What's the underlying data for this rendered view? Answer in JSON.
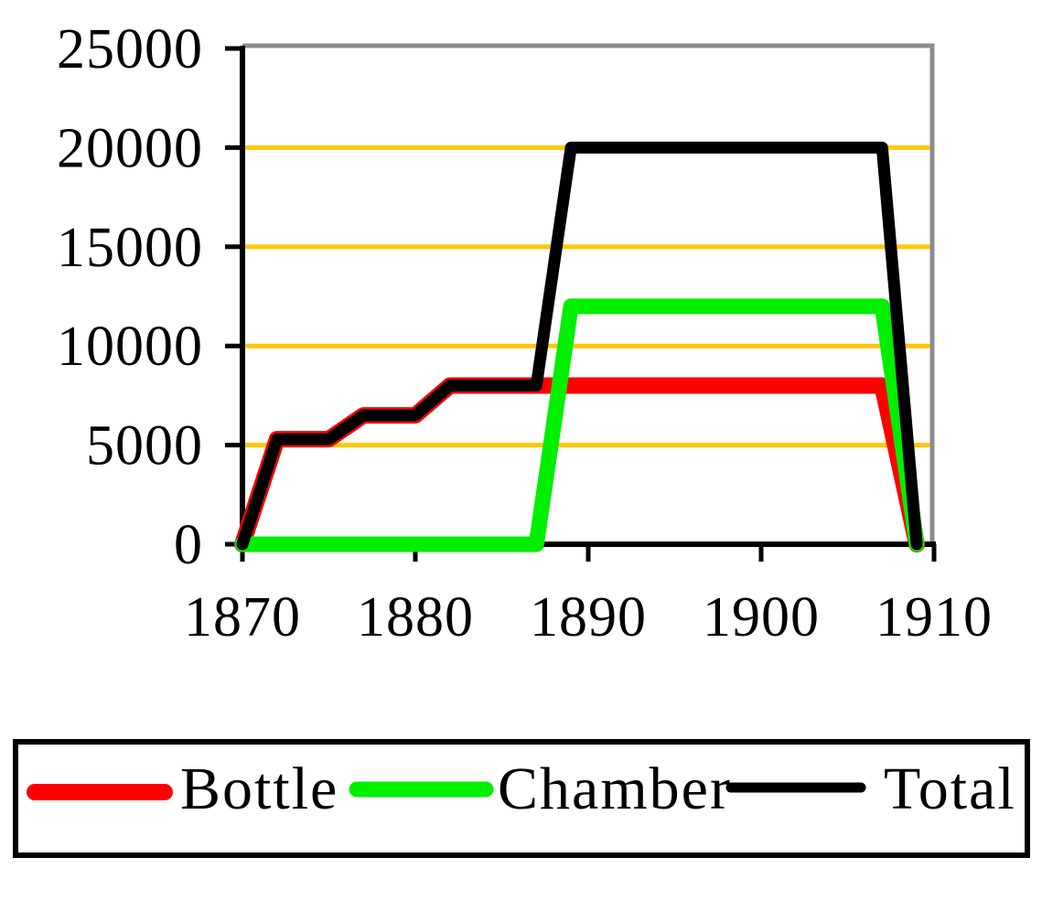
{
  "chart_data": {
    "type": "line",
    "x_axis": {
      "min": 1870,
      "max": 1910,
      "ticks": [
        1870,
        1880,
        1890,
        1900,
        1910
      ],
      "tick_labels": [
        "1870",
        "1880",
        "1890",
        "1900",
        "1910"
      ]
    },
    "y_axis": {
      "min": 0,
      "max": 25000,
      "ticks": [
        0,
        5000,
        10000,
        15000,
        20000,
        25000
      ],
      "tick_labels": [
        "0",
        "5000",
        "10000",
        "15000",
        "20000",
        "25000"
      ]
    },
    "gridlines": {
      "y_values": [
        5000,
        10000,
        15000,
        20000
      ],
      "color": "#FFC808"
    },
    "plot_border_color": "#8C8C8C",
    "axis_color": "#000000",
    "series": [
      {
        "name": "Bottle",
        "color": "#FF0000",
        "points": [
          [
            1870,
            0
          ],
          [
            1872,
            5300
          ],
          [
            1875,
            5300
          ],
          [
            1877,
            6500
          ],
          [
            1880,
            6500
          ],
          [
            1882,
            8000
          ],
          [
            1907,
            8000
          ],
          [
            1909,
            0
          ]
        ]
      },
      {
        "name": "Chamber",
        "color": "#00EE00",
        "points": [
          [
            1870,
            0
          ],
          [
            1887,
            0
          ],
          [
            1889,
            12000
          ],
          [
            1907,
            12000
          ],
          [
            1909,
            0
          ]
        ]
      },
      {
        "name": "Total",
        "color": "#000000",
        "points": [
          [
            1870,
            0
          ],
          [
            1872,
            5300
          ],
          [
            1875,
            5300
          ],
          [
            1877,
            6500
          ],
          [
            1880,
            6500
          ],
          [
            1882,
            8000
          ],
          [
            1887,
            8000
          ],
          [
            1889,
            20000
          ],
          [
            1907,
            20000
          ],
          [
            1909,
            0
          ]
        ]
      }
    ],
    "legend": {
      "position": "bottom",
      "entries": [
        {
          "label": "Bottle",
          "color": "#FF0000"
        },
        {
          "label": "Chamber",
          "color": "#00EE00"
        },
        {
          "label": "Total",
          "color": "#000000"
        }
      ]
    }
  }
}
